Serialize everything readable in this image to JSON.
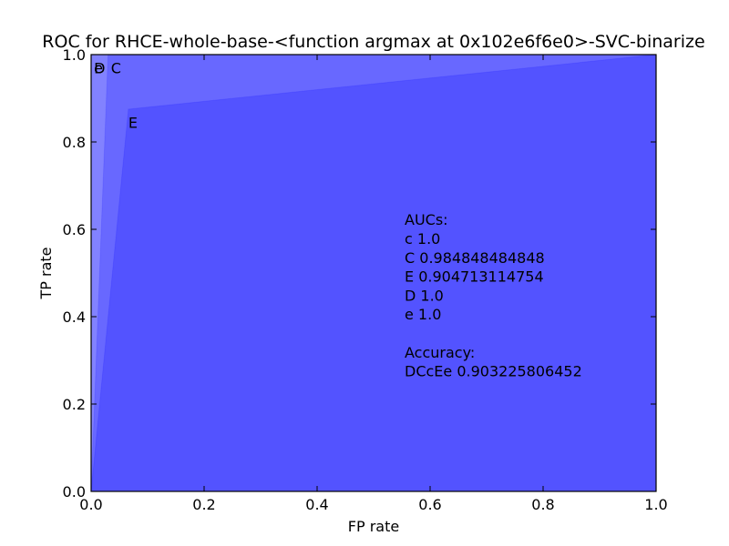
{
  "chart_data": {
    "type": "area",
    "title": "ROC for RHCE-whole-base-<function argmax at 0x102e6f6e0>-SVC-binarize",
    "xlabel": "FP rate",
    "ylabel": "TP rate",
    "xlim": [
      0.0,
      1.0
    ],
    "ylim": [
      0.0,
      1.0
    ],
    "x_ticks": [
      "0.0",
      "0.2",
      "0.4",
      "0.6",
      "0.8",
      "1.0"
    ],
    "y_ticks": [
      "0.0",
      "0.2",
      "0.4",
      "0.6",
      "0.8",
      "1.0"
    ],
    "grid": false,
    "fill_color": "#0000ff",
    "fill_opacity": 0.2,
    "series": [
      {
        "name": "c",
        "x": [
          0.0,
          0.0,
          1.0
        ],
        "y": [
          0.0,
          1.0,
          1.0
        ],
        "label_at": [
          0.005,
          0.97
        ]
      },
      {
        "name": "C",
        "x": [
          0.0,
          0.03,
          1.0
        ],
        "y": [
          0.0,
          1.0,
          1.0
        ],
        "label_at": [
          0.035,
          0.97
        ]
      },
      {
        "name": "E",
        "x": [
          0.0,
          0.066,
          1.0
        ],
        "y": [
          0.0,
          0.875,
          1.0
        ],
        "label_at": [
          0.066,
          0.845
        ]
      },
      {
        "name": "D",
        "x": [
          0.0,
          0.0,
          1.0
        ],
        "y": [
          0.0,
          1.0,
          1.0
        ],
        "label_at": [
          0.005,
          0.97
        ]
      },
      {
        "name": "e",
        "x": [
          0.0,
          0.0,
          1.0
        ],
        "y": [
          0.0,
          1.0,
          1.0
        ],
        "label_at": [
          0.005,
          0.97
        ]
      }
    ],
    "annotation": [
      "AUCs:",
      "c  1.0",
      "C  0.984848484848",
      "E  0.904713114754",
      "D  1.0",
      "e  1.0",
      "",
      "Accuracy:",
      "DCcEe  0.903225806452"
    ],
    "annotation_anchor": [
      0.6,
      0.61
    ]
  }
}
